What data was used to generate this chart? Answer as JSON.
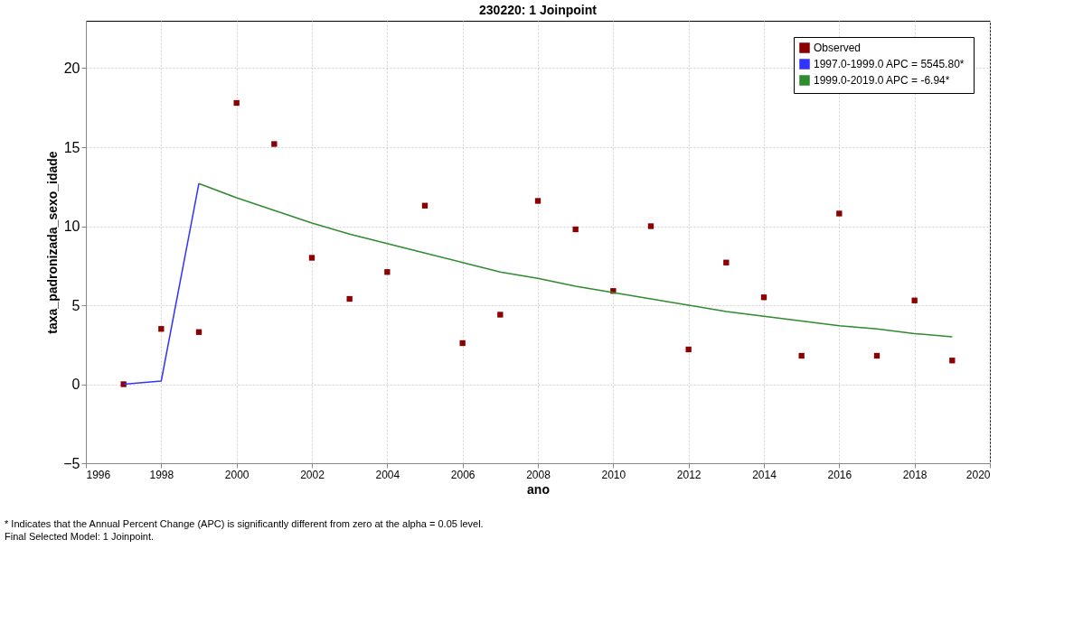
{
  "chart_data": {
    "type": "scatter",
    "title": "230220: 1 Joinpoint",
    "xlabel": "ano",
    "ylabel": "taxa_padronizada_sexo_idade",
    "xlim": [
      1996,
      2020
    ],
    "xticks": [
      1996,
      1998,
      2000,
      2002,
      2004,
      2006,
      2008,
      2010,
      2012,
      2014,
      2016,
      2018,
      2020
    ],
    "ylim": [
      -5,
      23
    ],
    "yticks": [
      -5,
      0,
      5,
      10,
      15,
      20
    ],
    "grid": true,
    "legend": "top right",
    "line_style": "solid",
    "series": [
      {
        "name": "Observed",
        "marker": "square",
        "color": "#8b0000",
        "x": [
          1997,
          1998,
          1999,
          2000,
          2001,
          2002,
          2003,
          2004,
          2005,
          2006,
          2007,
          2008,
          2009,
          2010,
          2011,
          2012,
          2013,
          2014,
          2015,
          2016,
          2017,
          2018,
          2019
        ],
        "values": [
          0.0,
          3.5,
          3.3,
          17.8,
          15.2,
          8.0,
          5.4,
          7.1,
          11.3,
          2.6,
          4.4,
          11.6,
          9.8,
          5.9,
          10.0,
          2.2,
          7.7,
          5.5,
          1.8,
          10.8,
          1.8,
          5.3,
          1.5
        ]
      },
      {
        "name": "1997.0-1999.0 APC  = 5545.80*",
        "type": "line",
        "color": "#3333ff",
        "x": [
          1997,
          1998,
          1999
        ],
        "values": [
          0.0,
          0.2,
          12.7
        ]
      },
      {
        "name": "1999.0-2019.0 APC =  -6.94*",
        "type": "line",
        "color": "#2e8b2e",
        "x": [
          1999,
          2000,
          2001,
          2002,
          2003,
          2004,
          2005,
          2006,
          2007,
          2008,
          2009,
          2010,
          2011,
          2012,
          2013,
          2014,
          2015,
          2016,
          2017,
          2018,
          2019
        ],
        "values": [
          12.7,
          11.8,
          11.0,
          10.2,
          9.5,
          8.9,
          8.3,
          7.7,
          7.1,
          6.7,
          6.2,
          5.8,
          5.4,
          5.0,
          4.6,
          4.3,
          4.0,
          3.7,
          3.5,
          3.2,
          3.0
        ]
      }
    ],
    "annotations": [
      "* Indicates that the Annual Percent Change (APC) is significantly different from zero at the alpha = 0.05 level.",
      "Final Selected Model: 1 Joinpoint."
    ]
  }
}
